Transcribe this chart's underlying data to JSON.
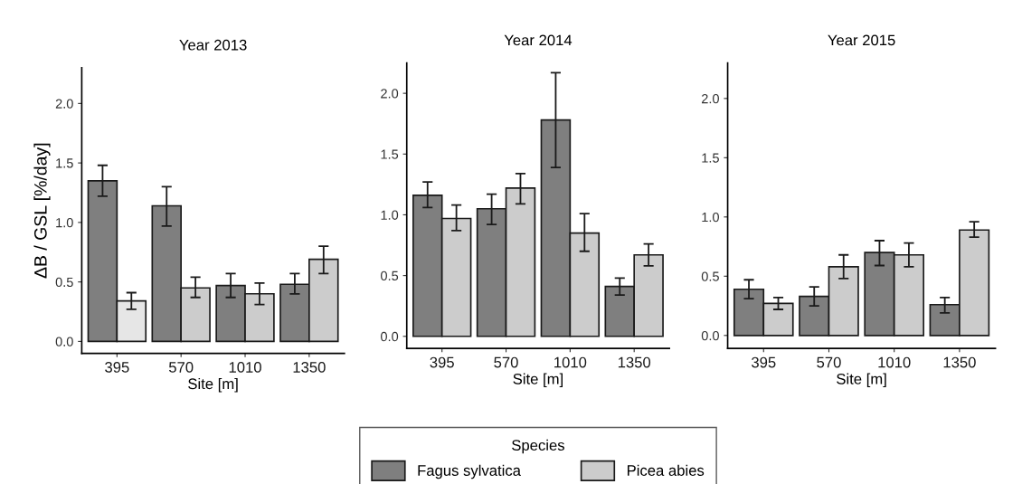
{
  "chart_data": [
    {
      "type": "bar",
      "title": "Year 2013",
      "xlabel": "Site [m]",
      "ylabel": "ΔB / GSL [%/day]",
      "categories": [
        "395",
        "570",
        "1010",
        "1350"
      ],
      "series": [
        {
          "color": "#7f7f7f",
          "values": [
            1.35,
            1.14,
            0.47,
            0.48
          ],
          "errors": [
            [
              1.22,
              1.48
            ],
            [
              0.97,
              1.3
            ],
            [
              0.37,
              0.57
            ],
            [
              0.4,
              0.57
            ]
          ]
        },
        {
          "colors": [
            "#e6e6e6",
            "#cccccc",
            "#cccccc",
            "#cccccc"
          ],
          "values": [
            0.34,
            0.45,
            0.4,
            0.69
          ],
          "errors": [
            [
              0.27,
              0.41
            ],
            [
              0.37,
              0.54
            ],
            [
              0.31,
              0.49
            ],
            [
              0.57,
              0.8
            ]
          ]
        }
      ],
      "ylim": [
        -0.1,
        2.3
      ],
      "yticks": [
        {
          "value": 0,
          "label": "0.0"
        },
        {
          "value": 0.5,
          "label": "0.5"
        },
        {
          "value": 1,
          "label": "1.0"
        },
        {
          "value": 1.5,
          "label": "1.5"
        },
        {
          "value": 2,
          "label": "2.0"
        }
      ],
      "grid": false,
      "legend": false
    },
    {
      "type": "bar",
      "title": "Year 2014",
      "xlabel": "Site [m]",
      "categories": [
        "395",
        "570",
        "1010",
        "1350"
      ],
      "legend_title": "Species",
      "series": [
        {
          "name": "Fagus sylvatica",
          "color": "#7f7f7f",
          "values": [
            1.16,
            1.05,
            1.78,
            0.41
          ],
          "errors": [
            [
              1.06,
              1.27
            ],
            [
              0.92,
              1.17
            ],
            [
              1.39,
              2.17
            ],
            [
              0.34,
              0.48
            ]
          ]
        },
        {
          "name": "Picea abies",
          "color": "#cccccc",
          "values": [
            0.97,
            1.22,
            0.85,
            0.67
          ],
          "errors": [
            [
              0.87,
              1.08
            ],
            [
              1.09,
              1.34
            ],
            [
              0.7,
              1.01
            ],
            [
              0.58,
              0.76
            ]
          ]
        }
      ],
      "ylim": [
        -0.1,
        2.25
      ],
      "yticks": [
        {
          "value": 0,
          "label": "0.0"
        },
        {
          "value": 0.5,
          "label": "0.5"
        },
        {
          "value": 1,
          "label": "1.0"
        },
        {
          "value": 1.5,
          "label": "1.5"
        },
        {
          "value": 2,
          "label": "2.0"
        }
      ],
      "grid": false,
      "legend": "bottom"
    },
    {
      "type": "bar",
      "title": "Year 2015",
      "xlabel": "Site [m]",
      "categories": [
        "395",
        "570",
        "1010",
        "1350"
      ],
      "series": [
        {
          "color": "#7f7f7f",
          "values": [
            0.39,
            0.33,
            0.7,
            0.26
          ],
          "errors": [
            [
              0.31,
              0.47
            ],
            [
              0.25,
              0.41
            ],
            [
              0.59,
              0.8
            ],
            [
              0.19,
              0.32
            ]
          ]
        },
        {
          "color": "#cccccc",
          "values": [
            0.27,
            0.58,
            0.68,
            0.89
          ],
          "errors": [
            [
              0.22,
              0.32
            ],
            [
              0.48,
              0.68
            ],
            [
              0.58,
              0.78
            ],
            [
              0.83,
              0.96
            ]
          ]
        }
      ],
      "ylim": [
        -0.11,
        2.3
      ],
      "yticks": [
        {
          "value": 0,
          "label": "0.0"
        },
        {
          "value": 0.5,
          "label": "0.5"
        },
        {
          "value": 1,
          "label": "1.0"
        },
        {
          "value": 1.5,
          "label": "1.5"
        },
        {
          "value": 2,
          "label": "2.0"
        }
      ],
      "grid": false,
      "legend": false
    }
  ]
}
